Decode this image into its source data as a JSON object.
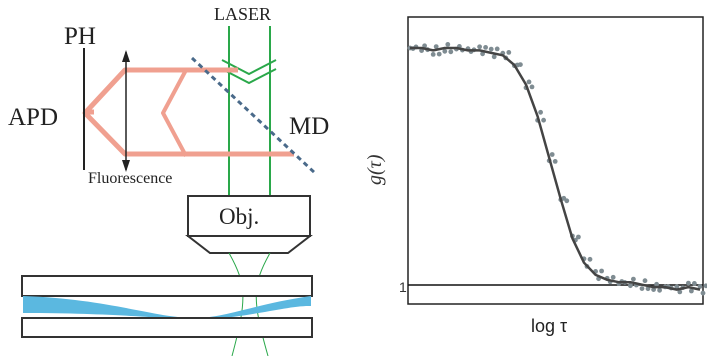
{
  "setup": {
    "labels": {
      "laser": "LASER",
      "pinhole": "PH",
      "detector": "APD",
      "mirror": "MD",
      "fluorescence": "Fluorescence",
      "objective": "Obj."
    },
    "colors": {
      "laser_beam": "#2aa84a",
      "fluorescence_beam": "#f0a090",
      "sample_fluid": "#5bb8e0",
      "mirror": "#4a6a8a",
      "outline": "#333333"
    }
  },
  "chart": {
    "y_axis_label": "g(τ)",
    "x_axis_label": "log τ",
    "colors": {
      "fit_line": "#444444",
      "data_points": "#7f8c92",
      "baseline": "#111111"
    }
  },
  "chart_data": {
    "type": "scatter",
    "title": "",
    "xlabel": "log τ",
    "ylabel": "g(τ)",
    "xscale": "log",
    "series": [
      {
        "x": [
          0.0,
          0.04,
          0.08,
          0.12,
          0.16,
          0.2,
          0.24,
          0.28,
          0.32,
          0.36,
          0.4,
          0.44,
          0.48,
          0.52,
          0.56,
          0.6,
          0.64,
          0.68,
          0.72,
          0.76,
          0.8,
          0.84,
          0.88,
          0.92,
          0.96,
          1.0
        ],
        "y": [
          1.0,
          1.0,
          0.99,
          1.0,
          1.0,
          0.99,
          0.99,
          0.98,
          0.97,
          0.93,
          0.85,
          0.72,
          0.55,
          0.38,
          0.22,
          0.12,
          0.07,
          0.05,
          0.04,
          0.04,
          0.03,
          0.02,
          0.02,
          0.01,
          0.02,
          0.01
        ]
      }
    ],
    "baseline": 1
  }
}
